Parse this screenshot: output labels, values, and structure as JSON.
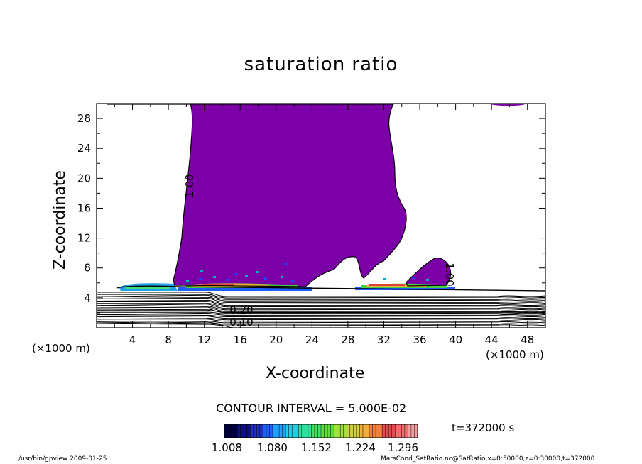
{
  "chart_data": {
    "type": "contour",
    "title": "saturation ratio",
    "xlabel": "X-coordinate",
    "ylabel": "Z-coordinate",
    "x_unit": "(×1000 m)",
    "y_unit": "(×1000 m)",
    "xlim": [
      0,
      50
    ],
    "ylim": [
      0,
      30
    ],
    "x_ticks": [
      "4",
      "8",
      "12",
      "16",
      "20",
      "24",
      "28",
      "32",
      "36",
      "40",
      "44",
      "48"
    ],
    "y_ticks": [
      "4",
      "8",
      "12",
      "16",
      "20",
      "24",
      "28"
    ],
    "contour_labels": [
      "1.00",
      "1.00",
      "0.10",
      "0.20"
    ],
    "contour_interval": "CONTOUR INTERVAL = 5.000E-02",
    "colorbar_ticks": [
      "1.008",
      "1.080",
      "1.152",
      "1.224",
      "1.296"
    ],
    "time": "t=372000  s",
    "fill_color": "#7b00a8"
  },
  "footer": {
    "left": "/usr/bin/gpview  2009-01-25",
    "right": "MarsCond_SatRatio.nc@SatRatio,x=0:50000,z=0:30000,t=372000"
  }
}
